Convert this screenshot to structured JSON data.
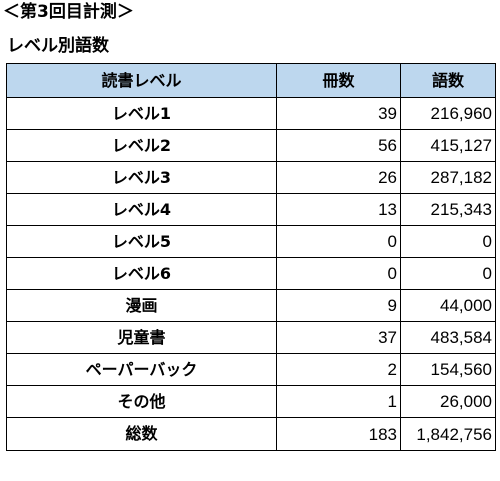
{
  "heading_1": "＜第3回目計測＞",
  "heading_2": "レベル別語数",
  "table": {
    "headers": [
      "読書レベル",
      "冊数",
      "語数"
    ],
    "rows": [
      {
        "level": "レベル1",
        "books": "39",
        "words": "216,960"
      },
      {
        "level": "レベル2",
        "books": "56",
        "words": "415,127"
      },
      {
        "level": "レベル3",
        "books": "26",
        "words": "287,182"
      },
      {
        "level": "レベル4",
        "books": "13",
        "words": "215,343"
      },
      {
        "level": "レベル5",
        "books": "0",
        "words": "0"
      },
      {
        "level": "レベル6",
        "books": "0",
        "words": "0"
      },
      {
        "level": "漫画",
        "books": "9",
        "words": "44,000"
      },
      {
        "level": "児童書",
        "books": "37",
        "words": "483,584"
      },
      {
        "level": "ペーパーバック",
        "books": "2",
        "words": "154,560"
      },
      {
        "level": "その他",
        "books": "1",
        "words": "26,000"
      }
    ],
    "total": {
      "level": "総数",
      "books": "183",
      "words": "1,842,756"
    }
  }
}
